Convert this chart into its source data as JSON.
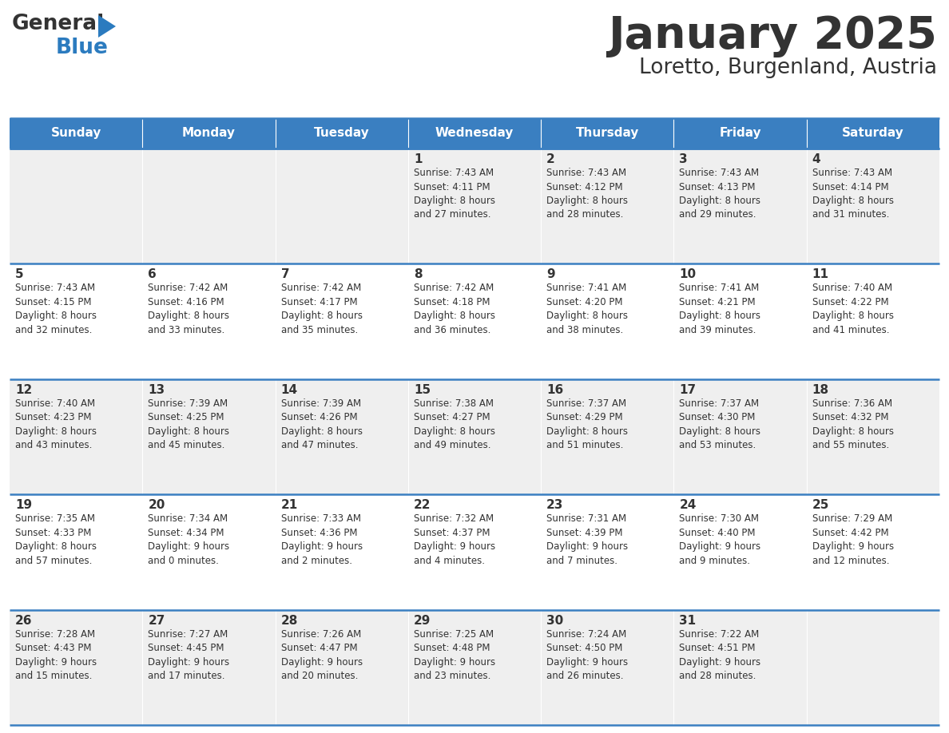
{
  "title": "January 2025",
  "subtitle": "Loretto, Burgenland, Austria",
  "header_color": "#3a7fc1",
  "header_text_color": "#ffffff",
  "cell_bg_odd": "#efefef",
  "cell_bg_even": "#ffffff",
  "border_color": "#3a7fc1",
  "text_color": "#333333",
  "logo_general_color": "#333333",
  "logo_blue_color": "#2b7bbf",
  "logo_triangle_color": "#2b7bbf",
  "days_of_week": [
    "Sunday",
    "Monday",
    "Tuesday",
    "Wednesday",
    "Thursday",
    "Friday",
    "Saturday"
  ],
  "calendar_data": [
    [
      {
        "day": "",
        "info": ""
      },
      {
        "day": "",
        "info": ""
      },
      {
        "day": "",
        "info": ""
      },
      {
        "day": "1",
        "info": "Sunrise: 7:43 AM\nSunset: 4:11 PM\nDaylight: 8 hours\nand 27 minutes."
      },
      {
        "day": "2",
        "info": "Sunrise: 7:43 AM\nSunset: 4:12 PM\nDaylight: 8 hours\nand 28 minutes."
      },
      {
        "day": "3",
        "info": "Sunrise: 7:43 AM\nSunset: 4:13 PM\nDaylight: 8 hours\nand 29 minutes."
      },
      {
        "day": "4",
        "info": "Sunrise: 7:43 AM\nSunset: 4:14 PM\nDaylight: 8 hours\nand 31 minutes."
      }
    ],
    [
      {
        "day": "5",
        "info": "Sunrise: 7:43 AM\nSunset: 4:15 PM\nDaylight: 8 hours\nand 32 minutes."
      },
      {
        "day": "6",
        "info": "Sunrise: 7:42 AM\nSunset: 4:16 PM\nDaylight: 8 hours\nand 33 minutes."
      },
      {
        "day": "7",
        "info": "Sunrise: 7:42 AM\nSunset: 4:17 PM\nDaylight: 8 hours\nand 35 minutes."
      },
      {
        "day": "8",
        "info": "Sunrise: 7:42 AM\nSunset: 4:18 PM\nDaylight: 8 hours\nand 36 minutes."
      },
      {
        "day": "9",
        "info": "Sunrise: 7:41 AM\nSunset: 4:20 PM\nDaylight: 8 hours\nand 38 minutes."
      },
      {
        "day": "10",
        "info": "Sunrise: 7:41 AM\nSunset: 4:21 PM\nDaylight: 8 hours\nand 39 minutes."
      },
      {
        "day": "11",
        "info": "Sunrise: 7:40 AM\nSunset: 4:22 PM\nDaylight: 8 hours\nand 41 minutes."
      }
    ],
    [
      {
        "day": "12",
        "info": "Sunrise: 7:40 AM\nSunset: 4:23 PM\nDaylight: 8 hours\nand 43 minutes."
      },
      {
        "day": "13",
        "info": "Sunrise: 7:39 AM\nSunset: 4:25 PM\nDaylight: 8 hours\nand 45 minutes."
      },
      {
        "day": "14",
        "info": "Sunrise: 7:39 AM\nSunset: 4:26 PM\nDaylight: 8 hours\nand 47 minutes."
      },
      {
        "day": "15",
        "info": "Sunrise: 7:38 AM\nSunset: 4:27 PM\nDaylight: 8 hours\nand 49 minutes."
      },
      {
        "day": "16",
        "info": "Sunrise: 7:37 AM\nSunset: 4:29 PM\nDaylight: 8 hours\nand 51 minutes."
      },
      {
        "day": "17",
        "info": "Sunrise: 7:37 AM\nSunset: 4:30 PM\nDaylight: 8 hours\nand 53 minutes."
      },
      {
        "day": "18",
        "info": "Sunrise: 7:36 AM\nSunset: 4:32 PM\nDaylight: 8 hours\nand 55 minutes."
      }
    ],
    [
      {
        "day": "19",
        "info": "Sunrise: 7:35 AM\nSunset: 4:33 PM\nDaylight: 8 hours\nand 57 minutes."
      },
      {
        "day": "20",
        "info": "Sunrise: 7:34 AM\nSunset: 4:34 PM\nDaylight: 9 hours\nand 0 minutes."
      },
      {
        "day": "21",
        "info": "Sunrise: 7:33 AM\nSunset: 4:36 PM\nDaylight: 9 hours\nand 2 minutes."
      },
      {
        "day": "22",
        "info": "Sunrise: 7:32 AM\nSunset: 4:37 PM\nDaylight: 9 hours\nand 4 minutes."
      },
      {
        "day": "23",
        "info": "Sunrise: 7:31 AM\nSunset: 4:39 PM\nDaylight: 9 hours\nand 7 minutes."
      },
      {
        "day": "24",
        "info": "Sunrise: 7:30 AM\nSunset: 4:40 PM\nDaylight: 9 hours\nand 9 minutes."
      },
      {
        "day": "25",
        "info": "Sunrise: 7:29 AM\nSunset: 4:42 PM\nDaylight: 9 hours\nand 12 minutes."
      }
    ],
    [
      {
        "day": "26",
        "info": "Sunrise: 7:28 AM\nSunset: 4:43 PM\nDaylight: 9 hours\nand 15 minutes."
      },
      {
        "day": "27",
        "info": "Sunrise: 7:27 AM\nSunset: 4:45 PM\nDaylight: 9 hours\nand 17 minutes."
      },
      {
        "day": "28",
        "info": "Sunrise: 7:26 AM\nSunset: 4:47 PM\nDaylight: 9 hours\nand 20 minutes."
      },
      {
        "day": "29",
        "info": "Sunrise: 7:25 AM\nSunset: 4:48 PM\nDaylight: 9 hours\nand 23 minutes."
      },
      {
        "day": "30",
        "info": "Sunrise: 7:24 AM\nSunset: 4:50 PM\nDaylight: 9 hours\nand 26 minutes."
      },
      {
        "day": "31",
        "info": "Sunrise: 7:22 AM\nSunset: 4:51 PM\nDaylight: 9 hours\nand 28 minutes."
      },
      {
        "day": "",
        "info": ""
      }
    ]
  ],
  "fig_width": 11.88,
  "fig_height": 9.18,
  "dpi": 100
}
